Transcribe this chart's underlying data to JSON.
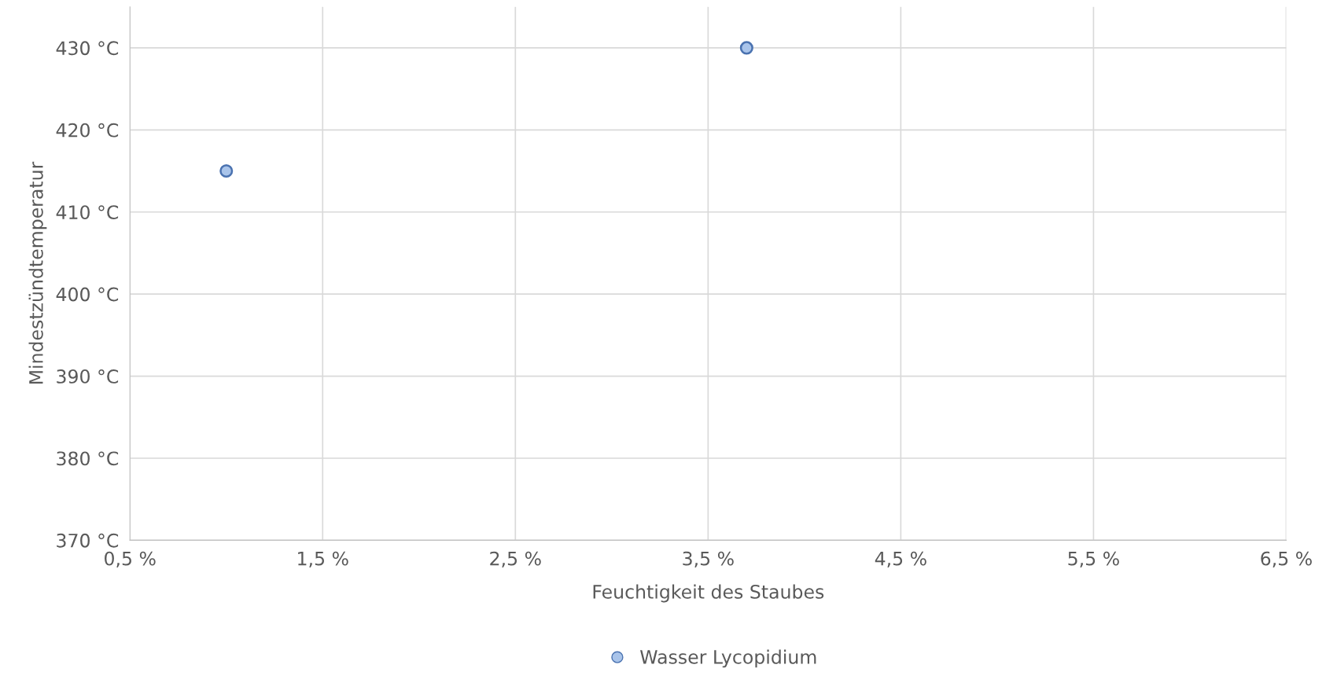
{
  "chart_data": {
    "type": "scatter",
    "xlabel": "Feuchtigkeit des Staubes",
    "ylabel": "Mindestzündtemperatur",
    "series": [
      {
        "name": "Wasser Lycopidium",
        "color": "#a9c4ea",
        "x": [
          1.0,
          3.7
        ],
        "values": [
          415,
          430
        ]
      }
    ],
    "xlim": [
      0.5,
      6.5
    ],
    "xticks": [
      {
        "value": 0.5,
        "label": "0,5 %"
      },
      {
        "value": 1.5,
        "label": "1,5 %"
      },
      {
        "value": 2.5,
        "label": "2,5 %"
      },
      {
        "value": 3.5,
        "label": "3,5 %"
      },
      {
        "value": 4.5,
        "label": "4,5 %"
      },
      {
        "value": 5.5,
        "label": "5,5 %"
      },
      {
        "value": 6.5,
        "label": "6,5 %"
      }
    ],
    "ylim": [
      370,
      435
    ],
    "yticks": [
      {
        "value": 370,
        "label": "370 °C"
      },
      {
        "value": 380,
        "label": "380 °C"
      },
      {
        "value": 390,
        "label": "390 °C"
      },
      {
        "value": 400,
        "label": "400 °C"
      },
      {
        "value": 410,
        "label": "410 °C"
      },
      {
        "value": 420,
        "label": "420 °C"
      },
      {
        "value": 430,
        "label": "430 °C"
      }
    ],
    "grid": true,
    "legend": "bottom",
    "marker": "circle"
  }
}
